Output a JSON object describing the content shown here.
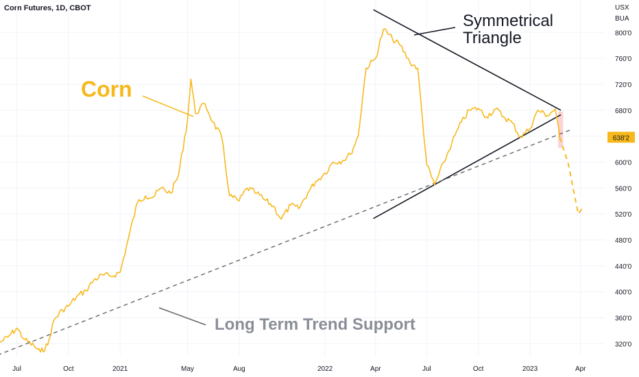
{
  "chart_data": {
    "type": "line",
    "title": "Corn Futures, 1D, CBOT",
    "currency": "USX",
    "unit": "BUA",
    "x_ticks": [
      "Jul",
      "Oct",
      "2021",
      "May",
      "Aug",
      "2022",
      "Apr",
      "Jul",
      "Oct",
      "2023",
      "Apr"
    ],
    "y_ticks": [
      "320'0",
      "360'0",
      "400'0",
      "440'0",
      "480'0",
      "520'0",
      "560'0",
      "600'0",
      "640'0",
      "680'0",
      "720'0",
      "760'0",
      "800'0"
    ],
    "ylim": [
      295,
      850
    ],
    "current_price_label": "638'2",
    "current_price": 638.25,
    "series": [
      {
        "name": "Corn",
        "x": [
          "2020-06-01",
          "2020-06-15",
          "2020-07-01",
          "2020-07-15",
          "2020-08-01",
          "2020-08-12",
          "2020-08-25",
          "2020-09-05",
          "2020-09-20",
          "2020-10-01",
          "2020-10-15",
          "2020-11-01",
          "2020-11-15",
          "2020-12-01",
          "2020-12-15",
          "2021-01-01",
          "2021-01-15",
          "2021-02-01",
          "2021-02-15",
          "2021-03-01",
          "2021-03-15",
          "2021-04-01",
          "2021-04-15",
          "2021-05-01",
          "2021-05-07",
          "2021-05-15",
          "2021-06-01",
          "2021-06-15",
          "2021-07-01",
          "2021-07-15",
          "2021-08-01",
          "2021-08-15",
          "2021-09-01",
          "2021-09-15",
          "2021-10-01",
          "2021-10-15",
          "2021-11-01",
          "2021-11-15",
          "2021-12-01",
          "2021-12-15",
          "2022-01-01",
          "2022-01-15",
          "2022-02-01",
          "2022-02-15",
          "2022-03-01",
          "2022-03-15",
          "2022-04-01",
          "2022-04-15",
          "2022-05-01",
          "2022-05-15",
          "2022-06-01",
          "2022-06-15",
          "2022-07-01",
          "2022-07-15",
          "2022-08-01",
          "2022-08-15",
          "2022-09-01",
          "2022-09-15",
          "2022-10-01",
          "2022-10-15",
          "2022-11-01",
          "2022-11-15",
          "2022-12-01",
          "2022-12-15",
          "2023-01-01",
          "2023-01-15",
          "2023-02-01",
          "2023-02-15",
          "2023-02-23"
        ],
        "values": [
          322,
          330,
          344,
          326,
          316,
          307,
          318,
          356,
          372,
          378,
          392,
          402,
          418,
          426,
          424,
          430,
          480,
          538,
          548,
          546,
          560,
          552,
          580,
          665,
          728,
          675,
          690,
          662,
          638,
          548,
          540,
          560,
          552,
          542,
          532,
          512,
          534,
          528,
          552,
          570,
          583,
          600,
          602,
          612,
          640,
          745,
          760,
          805,
          790,
          780,
          754,
          745,
          596,
          565,
          600,
          630,
          662,
          680,
          683,
          670,
          682,
          670,
          660,
          638,
          652,
          680,
          672,
          682,
          638
        ]
      },
      {
        "name": "projection",
        "x": [
          "2023-02-23",
          "2023-03-10",
          "2023-03-28",
          "2023-04-05"
        ],
        "values": [
          638,
          598,
          520,
          530
        ]
      }
    ],
    "annotations": [
      {
        "text": "Corn"
      },
      {
        "text": "Symmetrical"
      },
      {
        "text": "Triangle"
      },
      {
        "text": "Long Term Trend Support"
      }
    ],
    "trendlines": [
      {
        "name": "triangle-upper",
        "x": [
          "2022-03-28",
          "2023-02-25"
        ],
        "values": [
          835,
          680
        ]
      },
      {
        "name": "triangle-lower",
        "x": [
          "2022-03-28",
          "2023-02-25"
        ],
        "values": [
          513,
          673
        ]
      },
      {
        "name": "long-term-trend-support",
        "x": [
          "2020-05-15",
          "2023-03-15"
        ],
        "values": [
          298,
          650
        ]
      }
    ],
    "highlight": {
      "x": [
        "2023-02-20",
        "2023-03-01"
      ],
      "values": [
        622,
        678
      ]
    },
    "colors": {
      "price": "#f7b81b",
      "trend": "#666666",
      "triangle": "#131722",
      "label": "#8a8e97",
      "highlight": "#f8c9c7"
    },
    "grid": true
  }
}
